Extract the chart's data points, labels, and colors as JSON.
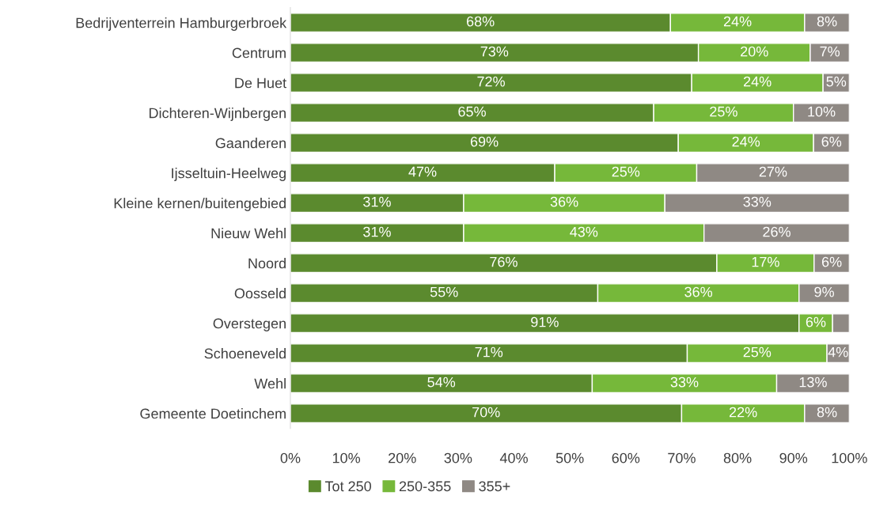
{
  "chart_data": {
    "type": "bar",
    "orientation": "horizontal",
    "stacked": true,
    "categories": [
      "Bedrijventerrein Hamburgerbroek",
      "Centrum",
      "De Huet",
      "Dichteren-Wijnbergen",
      "Gaanderen",
      "Ijsseltuin-Heelweg",
      "Kleine kernen/buitengebied",
      "Nieuw Wehl",
      "Noord",
      "Oosseld",
      "Overstegen",
      "Schoeneveld",
      "Wehl",
      "Gemeente Doetinchem"
    ],
    "series": [
      {
        "name": "Tot 250",
        "color": "#5b8a2e",
        "values": [
          68,
          73,
          71.8,
          65,
          69.4,
          47.3,
          31,
          31,
          76.3,
          55,
          91,
          71,
          54,
          70
        ],
        "value_labels": [
          "68%",
          "73%",
          "72%",
          "65%",
          "69%",
          "47%",
          "31%",
          "31%",
          "76%",
          "55%",
          "91%",
          "71%",
          "54%",
          "70%"
        ]
      },
      {
        "name": "250-355",
        "color": "#76b83a",
        "values": [
          24,
          20,
          23.5,
          25,
          24.2,
          25.4,
          36,
          43,
          17.4,
          36,
          6,
          25,
          33,
          22
        ],
        "value_labels": [
          "24%",
          "20%",
          "24%",
          "25%",
          "24%",
          "25%",
          "36%",
          "43%",
          "17%",
          "36%",
          "6%",
          "25%",
          "33%",
          "22%"
        ]
      },
      {
        "name": "355+",
        "color": "#8f8984",
        "values": [
          8,
          7,
          4.7,
          10,
          6.4,
          27.3,
          33,
          26,
          6.3,
          9,
          3,
          4,
          13,
          8
        ],
        "value_labels": [
          "8%",
          "7%",
          "5%",
          "10%",
          "6%",
          "27%",
          "33%",
          "26%",
          "6%",
          "9%",
          null,
          "4%",
          "13%",
          "8%"
        ]
      }
    ],
    "xlim": [
      0,
      100
    ],
    "xticks": [
      {
        "value": 0,
        "label": "0%"
      },
      {
        "value": 10,
        "label": "10%"
      },
      {
        "value": 20,
        "label": "20%"
      },
      {
        "value": 30,
        "label": "30%"
      },
      {
        "value": 40,
        "label": "40%"
      },
      {
        "value": 50,
        "label": "50%"
      },
      {
        "value": 60,
        "label": "60%"
      },
      {
        "value": 70,
        "label": "70%"
      },
      {
        "value": 80,
        "label": "80%"
      },
      {
        "value": 90,
        "label": "90%"
      },
      {
        "value": 100,
        "label": "100%"
      }
    ],
    "grid": false,
    "legend": "bottom"
  }
}
